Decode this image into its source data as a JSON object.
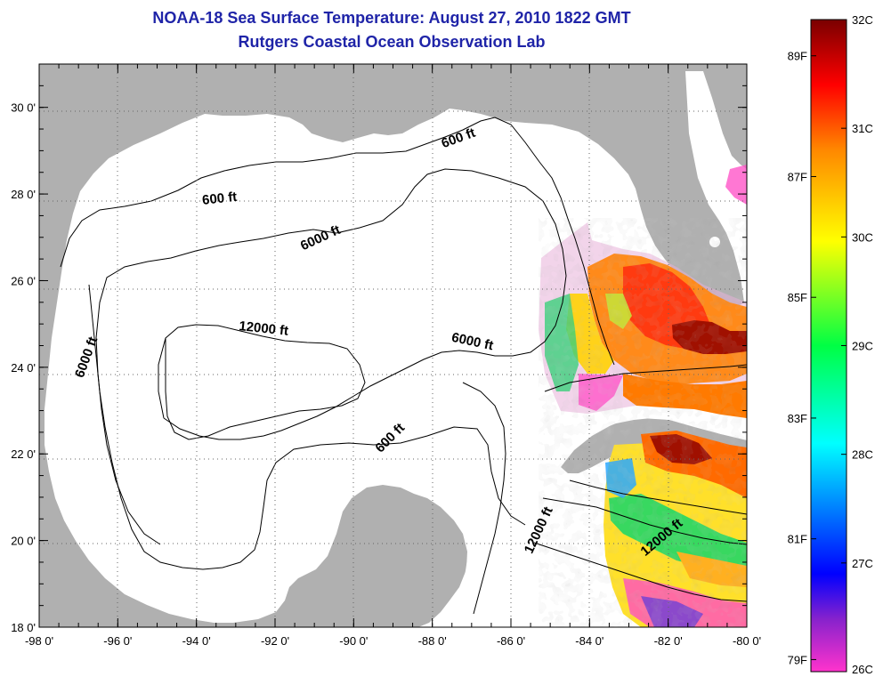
{
  "header": {
    "title": "NOAA-18 Sea Surface Temperature:  August 27, 2010 1822 GMT",
    "subtitle": "Rutgers Coastal Ocean Observation Lab"
  },
  "map": {
    "lon_range": [
      -98,
      -80
    ],
    "lat_range": [
      18,
      31
    ],
    "lon_ticks": [
      "-98 0'",
      "-96 0'",
      "-94 0'",
      "-92 0'",
      "-90 0'",
      "-88 0'",
      "-86 0'",
      "-84 0'",
      "-82 0'",
      "-80 0'"
    ],
    "lat_ticks": [
      "18 0'",
      "20 0'",
      "22 0'",
      "24 0'",
      "26 0'",
      "28 0'",
      "30 0'"
    ],
    "land_color": "#b0b0b0",
    "ocean_color": "#ffffff",
    "grid": "dotted",
    "contour_labels": [
      {
        "text": "600 ft",
        "lon": -93.4,
        "lat": 27.8,
        "rotation": -6
      },
      {
        "text": "600 ft",
        "lon": -87.3,
        "lat": 29.2,
        "rotation": -20
      },
      {
        "text": "6000 ft",
        "lon": -90.8,
        "lat": 26.9,
        "rotation": -25
      },
      {
        "text": "12000 ft",
        "lon": -92.3,
        "lat": 24.8,
        "rotation": 6
      },
      {
        "text": "6000 ft",
        "lon": -87.0,
        "lat": 24.5,
        "rotation": 12
      },
      {
        "text": "6000 ft",
        "lon": -96.7,
        "lat": 24.2,
        "rotation": -70
      },
      {
        "text": "600 ft",
        "lon": -89.0,
        "lat": 22.3,
        "rotation": -45
      },
      {
        "text": "12000 ft",
        "lon": -85.2,
        "lat": 20.2,
        "rotation": -65
      },
      {
        "text": "12000 ft",
        "lon": -82.1,
        "lat": 20.0,
        "rotation": -40
      }
    ]
  },
  "colorbar": {
    "celsius_labels": [
      "32C",
      "31C",
      "30C",
      "29C",
      "28C",
      "27C",
      "26C"
    ],
    "fahrenheit_labels": [
      "89F",
      "87F",
      "85F",
      "83F",
      "81F",
      "79F"
    ],
    "celsius_range": [
      26,
      32
    ],
    "stops": [
      "#ff33cc",
      "#8822cc",
      "#0000ff",
      "#00ffff",
      "#00ff44",
      "#ffff00",
      "#ff8800",
      "#ff0000",
      "#7a0000"
    ]
  }
}
